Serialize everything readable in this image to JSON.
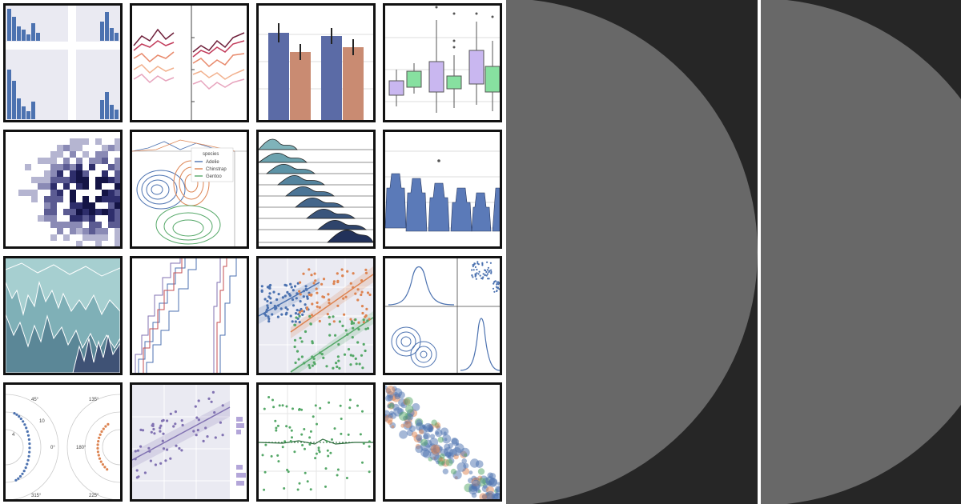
{
  "gallery": {
    "legend": {
      "title": "species",
      "items": [
        {
          "label": "Adelie",
          "color": "#4c72b0"
        },
        {
          "label": "Chinstrap",
          "color": "#dd8452"
        },
        {
          "label": "Gentoo",
          "color": "#55a868"
        }
      ]
    },
    "polar_labels": {
      "a45": "45°",
      "a0": "0°",
      "a315": "315°",
      "a135": "135°",
      "a180": "180°",
      "a225": "225°",
      "r4": "4",
      "r10": "10"
    },
    "palette": {
      "blue": "#4c72b0",
      "orange": "#dd8452",
      "green": "#55a868",
      "purple": "#8172b2",
      "lavender": "#c9b7f0",
      "mint": "#87e0a0",
      "navy": "#1b2a50",
      "teal": "#5f9aa6"
    }
  },
  "panels": [
    {
      "name": "left-panel",
      "background": "#262626",
      "disc": "#686868"
    },
    {
      "name": "right-panel",
      "background": "#262626",
      "disc": "#686868"
    }
  ]
}
